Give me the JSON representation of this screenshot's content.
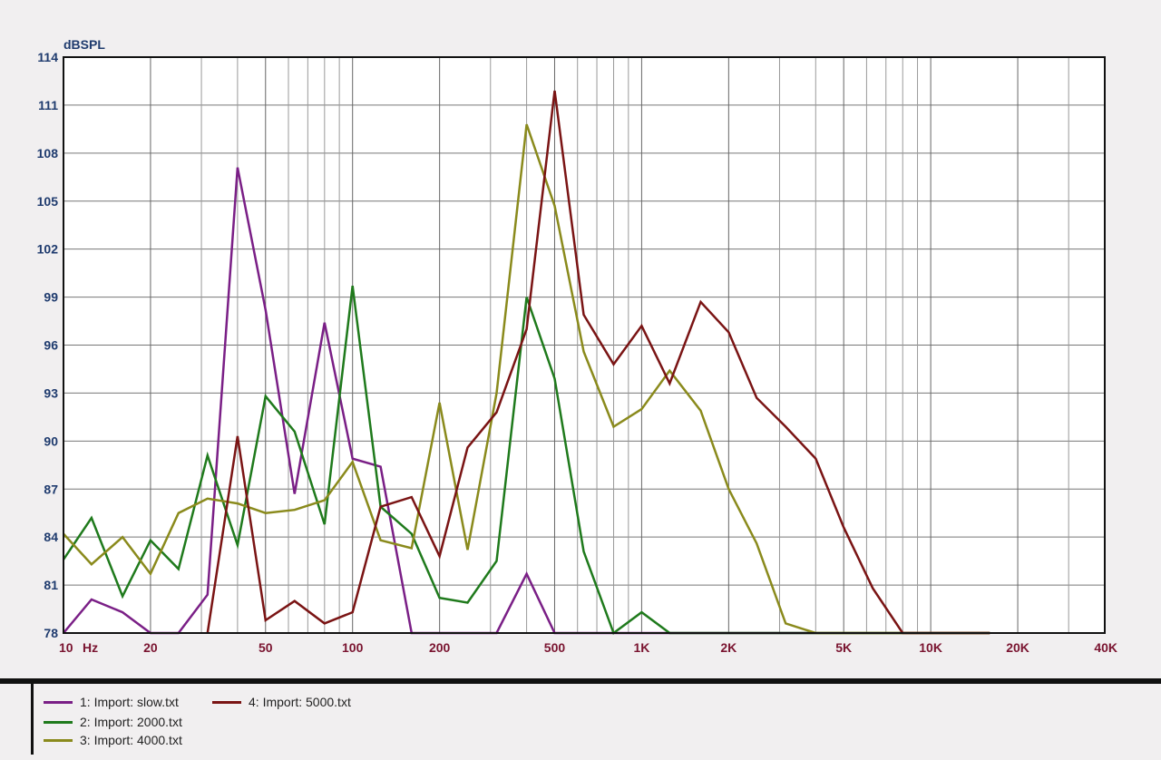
{
  "chart_data": {
    "type": "line",
    "ylabel": "dBSPL",
    "ylim": [
      78,
      114
    ],
    "xlim": [
      10,
      40000
    ],
    "x_scale": "log",
    "grid": true,
    "y_ticks": [
      78,
      81,
      84,
      87,
      90,
      93,
      96,
      99,
      102,
      105,
      108,
      111,
      114
    ],
    "x_tick_labels": [
      {
        "value": 10,
        "label": "10"
      },
      {
        "value": 20,
        "label": "20"
      },
      {
        "value": 50,
        "label": "50"
      },
      {
        "value": 100,
        "label": "100"
      },
      {
        "value": 200,
        "label": "200"
      },
      {
        "value": 500,
        "label": "500"
      },
      {
        "value": 1000,
        "label": "1K"
      },
      {
        "value": 2000,
        "label": "2K"
      },
      {
        "value": 5000,
        "label": "5K"
      },
      {
        "value": 10000,
        "label": "10K"
      },
      {
        "value": 20000,
        "label": "20K"
      },
      {
        "value": 40000,
        "label": "40K"
      }
    ],
    "x_unit_label": "Hz",
    "legend_position": "bottom",
    "series": [
      {
        "name": "1: Import: slow.txt",
        "color": "#7a1f86",
        "points": [
          [
            10,
            78
          ],
          [
            12.5,
            80.1
          ],
          [
            16,
            79.3
          ],
          [
            20,
            78
          ],
          [
            25,
            78
          ],
          [
            31.5,
            80.4
          ],
          [
            40,
            107.1
          ],
          [
            50,
            98.2
          ],
          [
            63,
            86.7
          ],
          [
            80,
            97.4
          ],
          [
            100,
            88.9
          ],
          [
            125,
            88.4
          ],
          [
            160,
            78
          ],
          [
            200,
            78
          ],
          [
            250,
            78
          ],
          [
            315,
            78
          ],
          [
            400,
            81.7
          ],
          [
            500,
            78
          ],
          [
            630,
            78
          ],
          [
            800,
            78
          ],
          [
            1000,
            78
          ],
          [
            1250,
            78
          ],
          [
            1600,
            78
          ],
          [
            2000,
            78
          ],
          [
            2500,
            78
          ],
          [
            3150,
            78
          ],
          [
            4000,
            78
          ],
          [
            5000,
            78
          ],
          [
            6300,
            78
          ],
          [
            8000,
            78
          ],
          [
            10000,
            78
          ],
          [
            12500,
            78
          ],
          [
            16000,
            78
          ]
        ]
      },
      {
        "name": "2: Import: 2000.txt",
        "color": "#1f7a1c",
        "points": [
          [
            10,
            82.6
          ],
          [
            12.5,
            85.2
          ],
          [
            16,
            80.3
          ],
          [
            20,
            83.8
          ],
          [
            25,
            82
          ],
          [
            31.5,
            89.1
          ],
          [
            40,
            83.5
          ],
          [
            50,
            92.8
          ],
          [
            63,
            90.6
          ],
          [
            80,
            84.8
          ],
          [
            100,
            99.7
          ],
          [
            125,
            85.9
          ],
          [
            160,
            84.2
          ],
          [
            200,
            80.2
          ],
          [
            250,
            79.9
          ],
          [
            315,
            82.5
          ],
          [
            400,
            99
          ],
          [
            500,
            93.9
          ],
          [
            630,
            83.1
          ],
          [
            800,
            78
          ],
          [
            1000,
            79.3
          ],
          [
            1250,
            78
          ],
          [
            1600,
            78
          ],
          [
            2000,
            78
          ],
          [
            2500,
            78
          ],
          [
            3150,
            78
          ],
          [
            4000,
            78
          ],
          [
            5000,
            78
          ],
          [
            6300,
            78
          ],
          [
            8000,
            78
          ],
          [
            10000,
            78
          ],
          [
            12500,
            78
          ],
          [
            16000,
            78
          ]
        ]
      },
      {
        "name": "3: Import: 4000.txt",
        "color": "#8a8a1c",
        "points": [
          [
            10,
            84.2
          ],
          [
            12.5,
            82.3
          ],
          [
            16,
            84
          ],
          [
            20,
            81.7
          ],
          [
            25,
            85.5
          ],
          [
            31.5,
            86.4
          ],
          [
            40,
            86.1
          ],
          [
            50,
            85.5
          ],
          [
            63,
            85.7
          ],
          [
            80,
            86.3
          ],
          [
            100,
            88.7
          ],
          [
            125,
            83.8
          ],
          [
            160,
            83.3
          ],
          [
            200,
            92.4
          ],
          [
            250,
            83.2
          ],
          [
            315,
            93
          ],
          [
            400,
            109.8
          ],
          [
            500,
            104.7
          ],
          [
            630,
            95.6
          ],
          [
            800,
            90.9
          ],
          [
            1000,
            92
          ],
          [
            1250,
            94.4
          ],
          [
            1600,
            91.9
          ],
          [
            2000,
            87
          ],
          [
            2500,
            83.6
          ],
          [
            3150,
            78.6
          ],
          [
            4000,
            78
          ],
          [
            5000,
            78
          ],
          [
            6300,
            78
          ],
          [
            8000,
            78
          ],
          [
            10000,
            78
          ],
          [
            12500,
            78
          ],
          [
            16000,
            78
          ]
        ]
      },
      {
        "name": "4: Import: 5000.txt",
        "color": "#7a1414",
        "points": [
          [
            31.5,
            78
          ],
          [
            40,
            90.3
          ],
          [
            50,
            78.8
          ],
          [
            63,
            80
          ],
          [
            80,
            78.6
          ],
          [
            100,
            79.3
          ],
          [
            125,
            85.9
          ],
          [
            160,
            86.5
          ],
          [
            200,
            82.8
          ],
          [
            250,
            89.6
          ],
          [
            315,
            91.8
          ],
          [
            400,
            97
          ],
          [
            500,
            111.9
          ],
          [
            630,
            97.9
          ],
          [
            800,
            94.8
          ],
          [
            1000,
            97.2
          ],
          [
            1250,
            93.6
          ],
          [
            1600,
            98.7
          ],
          [
            2000,
            96.8
          ],
          [
            2500,
            92.7
          ],
          [
            3150,
            90.9
          ],
          [
            4000,
            88.9
          ],
          [
            5000,
            84.6
          ],
          [
            6300,
            80.8
          ],
          [
            8000,
            78
          ],
          [
            10000,
            78
          ],
          [
            12500,
            78
          ],
          [
            16000,
            78
          ]
        ]
      }
    ]
  }
}
